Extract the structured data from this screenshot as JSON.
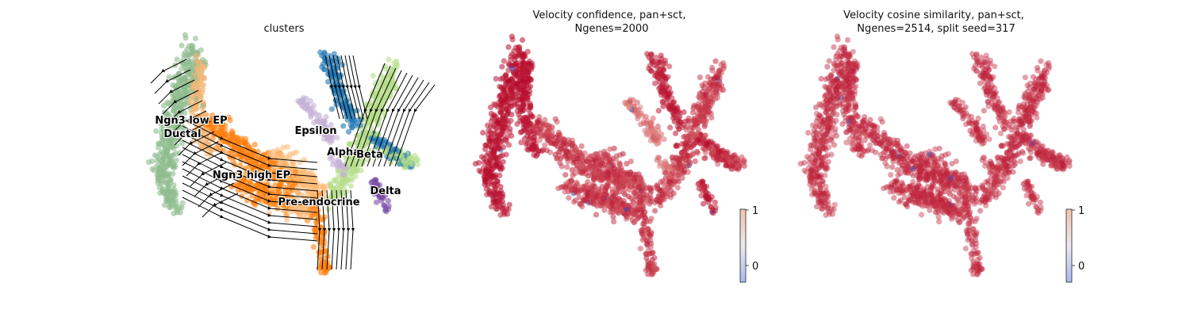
{
  "chart_data": [
    {
      "type": "scatter",
      "title": "clusters",
      "subtitle": "",
      "xlabel": "",
      "ylabel": "",
      "grid": false,
      "legend": "on data",
      "overlay": "velocity stream arrows",
      "cluster_labels": [
        {
          "name": "Ngn3 low EP",
          "color": "#f3b676"
        },
        {
          "name": "Ductal",
          "color": "#8fbc8f"
        },
        {
          "name": "Epsilon",
          "color": "#c5b0d5"
        },
        {
          "name": "Alpha",
          "color": "#1f77b4"
        },
        {
          "name": "Beta",
          "color": "#b5de8b"
        },
        {
          "name": "Ngn3 high EP",
          "color": "#ff7f0e"
        },
        {
          "name": "Delta",
          "color": "#7b4fa6"
        },
        {
          "name": "Pre-endocrine",
          "color": "#ffbb78"
        }
      ]
    },
    {
      "type": "scatter",
      "title": "Velocity confidence, pan+sct,",
      "subtitle": "Ngenes=2000",
      "xlabel": "",
      "ylabel": "",
      "grid": false,
      "colormap": "coolwarm",
      "colorbar": {
        "ticks": [
          "1",
          "0"
        ],
        "low_color": "#3b4cc0",
        "high_color": "#b40426",
        "mid_color": "#f5c4ac"
      }
    },
    {
      "type": "scatter",
      "title": "Velocity cosine similarity, pan+sct,",
      "subtitle": "Ngenes=2514, split seed=317",
      "xlabel": "",
      "ylabel": "",
      "grid": false,
      "colormap": "coolwarm",
      "colorbar": {
        "ticks": [
          "1",
          "0"
        ],
        "low_color": "#3b4cc0",
        "high_color": "#b40426",
        "mid_color": "#f5c4ac"
      }
    }
  ]
}
